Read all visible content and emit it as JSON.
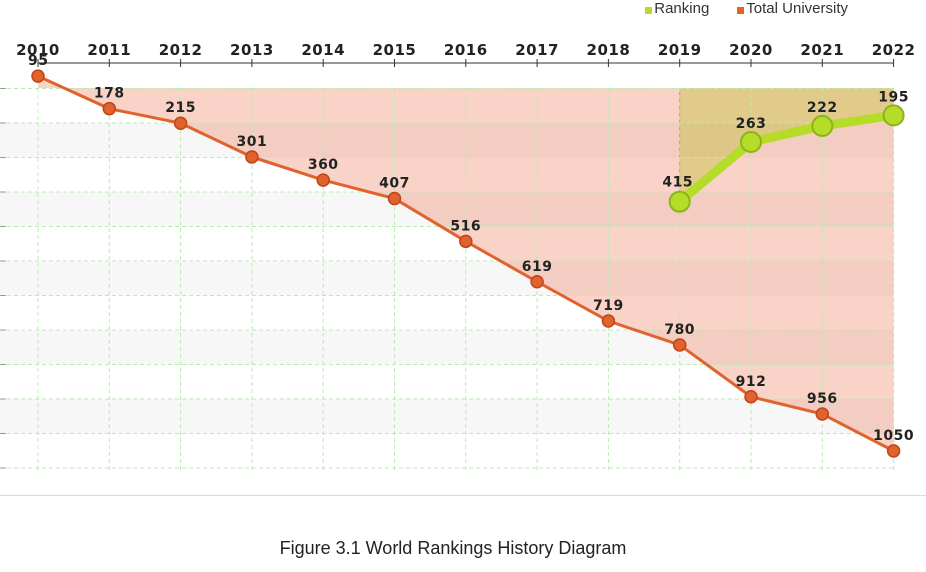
{
  "chart_data": {
    "type": "line",
    "title": "",
    "categories": [
      "2010",
      "2011",
      "2012",
      "2013",
      "2014",
      "2015",
      "2016",
      "2017",
      "2018",
      "2019",
      "2020",
      "2021",
      "2022"
    ],
    "legend_position": "top-right",
    "series": [
      {
        "name": "Ranking",
        "color": "#b4dc28",
        "x": [
          "2019",
          "2020",
          "2021",
          "2022"
        ],
        "values": [
          415,
          263,
          222,
          195
        ]
      },
      {
        "name": "Total University",
        "color": "#e0622c",
        "x": [
          "2010",
          "2011",
          "2012",
          "2013",
          "2014",
          "2015",
          "2016",
          "2017",
          "2018",
          "2019",
          "2020",
          "2021",
          "2022"
        ],
        "values": [
          95,
          178,
          215,
          301,
          360,
          407,
          516,
          619,
          719,
          780,
          912,
          956,
          1050
        ]
      }
    ],
    "y_reversed": true,
    "ylim": [
      0,
      1100
    ],
    "grid": true
  },
  "caption": "Figure 3.1 World Rankings History Diagram"
}
